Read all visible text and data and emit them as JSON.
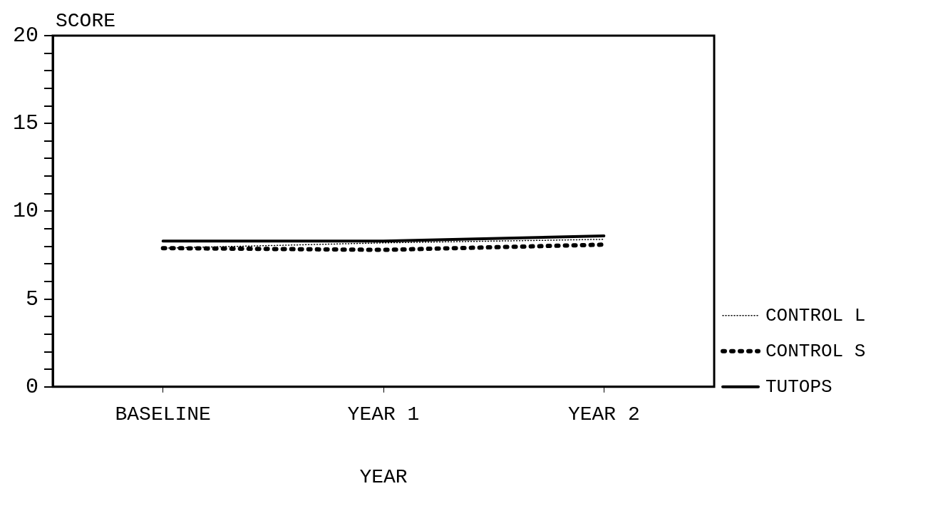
{
  "chart_data": {
    "type": "line",
    "ylabel": "SCORE",
    "xlabel": "YEAR",
    "categories": [
      "BASELINE",
      "YEAR 1",
      "YEAR 2"
    ],
    "series": [
      {
        "name": "CONTROL L",
        "color": "#000000",
        "values": [
          7.9,
          8.2,
          8.4
        ],
        "line_style": "dotted"
      },
      {
        "name": "CONTROL S",
        "color": "#000000",
        "values": [
          7.9,
          7.8,
          8.1
        ],
        "line_style": "dashed"
      },
      {
        "name": "TUTOPS",
        "color": "#000000",
        "values": [
          8.3,
          8.3,
          8.6
        ],
        "line_style": "solid"
      }
    ],
    "ylim": [
      0,
      20
    ],
    "yticks": [
      0,
      {
        "value": 1,
        "label": null
      },
      {
        "value": 2,
        "label": null
      },
      {
        "value": 3,
        "label": null
      },
      {
        "value": 4,
        "label": null
      },
      5,
      {
        "value": 6,
        "label": null
      },
      {
        "value": 7,
        "label": null
      },
      {
        "value": 8,
        "label": null
      },
      {
        "value": 9,
        "label": null
      },
      10,
      {
        "value": 11,
        "label": null
      },
      {
        "value": 12,
        "label": null
      },
      {
        "value": 13,
        "label": null
      },
      {
        "value": 14,
        "label": null
      },
      15,
      {
        "value": 16,
        "label": null
      },
      {
        "value": 17,
        "label": null
      },
      {
        "value": 18,
        "label": null
      },
      {
        "value": 19,
        "label": null
      },
      20
    ],
    "grid": false,
    "legend": "bottom right",
    "marker": "none"
  }
}
